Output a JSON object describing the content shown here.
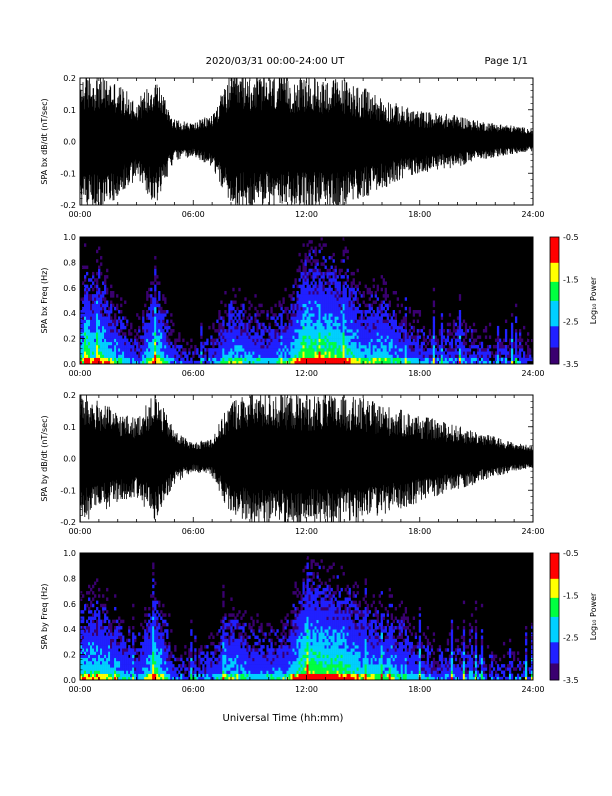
{
  "header": {
    "title": "2020/03/31  00:00-24:00 UT",
    "page": "Page 1/1"
  },
  "footer": {
    "xlabel": "Universal Time (hh:mm)"
  },
  "colorbar": {
    "label": "Log₁₀ Power",
    "ticks": [
      "-0.5",
      "-1.5",
      "-2.5",
      "-3.5"
    ],
    "range": [
      -3.5,
      -0.5
    ]
  },
  "chart_data": [
    {
      "type": "line",
      "ylabel": "SPA bx dB/dt (nT/sec)",
      "x_ticks": [
        "00:00",
        "06:00",
        "12:00",
        "18:00",
        "24:00"
      ],
      "y_ticks": [
        "-0.2",
        "-0.1",
        "0.0",
        "0.1",
        "0.2"
      ],
      "xlim": [
        0,
        24
      ],
      "ylim": [
        -0.2,
        0.2
      ],
      "envelope": [
        {
          "x": 0,
          "amp": 0.21
        },
        {
          "x": 1,
          "amp": 0.21
        },
        {
          "x": 2,
          "amp": 0.18
        },
        {
          "x": 3,
          "amp": 0.12
        },
        {
          "x": 4,
          "amp": 0.2
        },
        {
          "x": 5,
          "amp": 0.06
        },
        {
          "x": 6,
          "amp": 0.05
        },
        {
          "x": 7,
          "amp": 0.08
        },
        {
          "x": 8,
          "amp": 0.21
        },
        {
          "x": 9,
          "amp": 0.21
        },
        {
          "x": 10,
          "amp": 0.21
        },
        {
          "x": 11,
          "amp": 0.21
        },
        {
          "x": 12,
          "amp": 0.21
        },
        {
          "x": 13,
          "amp": 0.21
        },
        {
          "x": 14,
          "amp": 0.21
        },
        {
          "x": 15,
          "amp": 0.18
        },
        {
          "x": 16,
          "amp": 0.15
        },
        {
          "x": 17,
          "amp": 0.12
        },
        {
          "x": 18,
          "amp": 0.1
        },
        {
          "x": 19,
          "amp": 0.09
        },
        {
          "x": 20,
          "amp": 0.08
        },
        {
          "x": 21,
          "amp": 0.06
        },
        {
          "x": 22,
          "amp": 0.05
        },
        {
          "x": 23,
          "amp": 0.04
        },
        {
          "x": 24,
          "amp": 0.03
        }
      ]
    },
    {
      "type": "heatmap",
      "ylabel": "SPA bx Freq (Hz)",
      "x_ticks": [
        "00:00",
        "06:00",
        "12:00",
        "18:00",
        "24:00"
      ],
      "y_ticks": [
        "0.0",
        "0.2",
        "0.4",
        "0.6",
        "0.8",
        "1.0"
      ],
      "xlim": [
        0,
        24
      ],
      "ylim": [
        0,
        1.0
      ],
      "activity": [
        {
          "x": 0,
          "level": 0.6
        },
        {
          "x": 1,
          "level": 0.7
        },
        {
          "x": 2,
          "level": 0.5
        },
        {
          "x": 3,
          "level": 0.3
        },
        {
          "x": 4,
          "level": 0.7
        },
        {
          "x": 5,
          "level": 0.3
        },
        {
          "x": 6,
          "level": 0.2
        },
        {
          "x": 7,
          "level": 0.3
        },
        {
          "x": 8,
          "level": 0.55
        },
        {
          "x": 9,
          "level": 0.45
        },
        {
          "x": 10,
          "level": 0.4
        },
        {
          "x": 11,
          "level": 0.5
        },
        {
          "x": 12,
          "level": 0.85
        },
        {
          "x": 13,
          "level": 0.8
        },
        {
          "x": 14,
          "level": 0.75
        },
        {
          "x": 15,
          "level": 0.55
        },
        {
          "x": 16,
          "level": 0.6
        },
        {
          "x": 17,
          "level": 0.45
        },
        {
          "x": 18,
          "level": 0.35
        },
        {
          "x": 19,
          "level": 0.3
        },
        {
          "x": 20,
          "level": 0.35
        },
        {
          "x": 21,
          "level": 0.3
        },
        {
          "x": 22,
          "level": 0.25
        },
        {
          "x": 23,
          "level": 0.25
        },
        {
          "x": 24,
          "level": 0.25
        }
      ]
    },
    {
      "type": "line",
      "ylabel": "SPA by dB/dt (nT/sec)",
      "x_ticks": [
        "00:00",
        "06:00",
        "12:00",
        "18:00",
        "24:00"
      ],
      "y_ticks": [
        "-0.2",
        "-0.1",
        "0.0",
        "0.1",
        "0.2"
      ],
      "xlim": [
        0,
        24
      ],
      "ylim": [
        -0.2,
        0.2
      ],
      "envelope": [
        {
          "x": 0,
          "amp": 0.21
        },
        {
          "x": 1,
          "amp": 0.18
        },
        {
          "x": 2,
          "amp": 0.14
        },
        {
          "x": 3,
          "amp": 0.12
        },
        {
          "x": 4,
          "amp": 0.2
        },
        {
          "x": 5,
          "amp": 0.08
        },
        {
          "x": 6,
          "amp": 0.04
        },
        {
          "x": 7,
          "amp": 0.06
        },
        {
          "x": 8,
          "amp": 0.18
        },
        {
          "x": 9,
          "amp": 0.21
        },
        {
          "x": 10,
          "amp": 0.21
        },
        {
          "x": 11,
          "amp": 0.21
        },
        {
          "x": 12,
          "amp": 0.21
        },
        {
          "x": 13,
          "amp": 0.21
        },
        {
          "x": 14,
          "amp": 0.21
        },
        {
          "x": 15,
          "amp": 0.2
        },
        {
          "x": 16,
          "amp": 0.18
        },
        {
          "x": 17,
          "amp": 0.16
        },
        {
          "x": 18,
          "amp": 0.14
        },
        {
          "x": 19,
          "amp": 0.12
        },
        {
          "x": 20,
          "amp": 0.1
        },
        {
          "x": 21,
          "amp": 0.08
        },
        {
          "x": 22,
          "amp": 0.06
        },
        {
          "x": 23,
          "amp": 0.04
        },
        {
          "x": 24,
          "amp": 0.03
        }
      ]
    },
    {
      "type": "heatmap",
      "ylabel": "SPA by Freq (Hz)",
      "x_ticks": [
        "00:00",
        "06:00",
        "12:00",
        "18:00",
        "24:00"
      ],
      "y_ticks": [
        "0.0",
        "0.2",
        "0.4",
        "0.6",
        "0.8",
        "1.0"
      ],
      "xlim": [
        0,
        24
      ],
      "ylim": [
        0,
        1.0
      ],
      "activity": [
        {
          "x": 0,
          "level": 0.6
        },
        {
          "x": 1,
          "level": 0.65
        },
        {
          "x": 2,
          "level": 0.5
        },
        {
          "x": 3,
          "level": 0.35
        },
        {
          "x": 4,
          "level": 0.7
        },
        {
          "x": 5,
          "level": 0.3
        },
        {
          "x": 6,
          "level": 0.25
        },
        {
          "x": 7,
          "level": 0.35
        },
        {
          "x": 8,
          "level": 0.55
        },
        {
          "x": 9,
          "level": 0.45
        },
        {
          "x": 10,
          "level": 0.4
        },
        {
          "x": 11,
          "level": 0.5
        },
        {
          "x": 12,
          "level": 0.85
        },
        {
          "x": 13,
          "level": 0.8
        },
        {
          "x": 14,
          "level": 0.75
        },
        {
          "x": 15,
          "level": 0.6
        },
        {
          "x": 16,
          "level": 0.55
        },
        {
          "x": 17,
          "level": 0.5
        },
        {
          "x": 18,
          "level": 0.35
        },
        {
          "x": 19,
          "level": 0.3
        },
        {
          "x": 20,
          "level": 0.35
        },
        {
          "x": 21,
          "level": 0.3
        },
        {
          "x": 22,
          "level": 0.25
        },
        {
          "x": 23,
          "level": 0.25
        },
        {
          "x": 24,
          "level": 0.25
        }
      ]
    }
  ]
}
